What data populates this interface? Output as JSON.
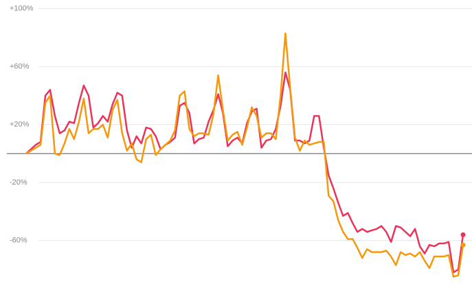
{
  "chart_data": {
    "type": "line",
    "ylim": [
      -90,
      106
    ],
    "yticks": [
      {
        "value": 100,
        "label": "+100%"
      },
      {
        "value": 60,
        "label": "+60%"
      },
      {
        "value": 20,
        "label": "+20%"
      },
      {
        "value": -20,
        "label": "-20%"
      },
      {
        "value": -60,
        "label": "-60%"
      }
    ],
    "grid": true,
    "series": [
      {
        "color": "#e8335a",
        "values": [
          0,
          3,
          6,
          8,
          40,
          44,
          26,
          14,
          16,
          22,
          21,
          35,
          47,
          40,
          18,
          21,
          26,
          22,
          34,
          42,
          40,
          16,
          4,
          12,
          7,
          18,
          17,
          12,
          3,
          6,
          8,
          11,
          33,
          35,
          28,
          7,
          10,
          11,
          22,
          30,
          41,
          28,
          5,
          9,
          11,
          7,
          21,
          29,
          31,
          4,
          9,
          10,
          17,
          33,
          56,
          44,
          9,
          9,
          7,
          9,
          26,
          26,
          4,
          -15,
          -24,
          -34,
          -43,
          -41,
          -48,
          -54,
          -52,
          -54,
          -53,
          -52,
          -50,
          -54,
          -61,
          -50,
          -51,
          -54,
          -57,
          -52,
          -64,
          -69,
          -63,
          -64,
          -62,
          -62,
          -61,
          -82,
          -80,
          -56
        ]
      },
      {
        "color": "#f5980c",
        "values": [
          0,
          2,
          4,
          6,
          35,
          40,
          0,
          -1,
          7,
          17,
          10,
          22,
          38,
          14,
          17,
          17,
          20,
          11,
          30,
          37,
          14,
          2,
          7,
          -4,
          -6,
          10,
          13,
          -1,
          3,
          6,
          9,
          16,
          40,
          43,
          17,
          12,
          14,
          14,
          13,
          27,
          54,
          30,
          9,
          13,
          15,
          6,
          18,
          32,
          26,
          11,
          14,
          14,
          10,
          40,
          83,
          45,
          11,
          2,
          9,
          6,
          7,
          8,
          8,
          -29,
          -33,
          -46,
          -54,
          -59,
          -59,
          -65,
          -72,
          -66,
          -68,
          -68,
          -68,
          -67,
          -71,
          -77,
          -68,
          -70,
          -69,
          -71,
          -68,
          -74,
          -79,
          -71,
          -71,
          -71,
          -70,
          -85,
          -84,
          -63
        ]
      }
    ]
  }
}
